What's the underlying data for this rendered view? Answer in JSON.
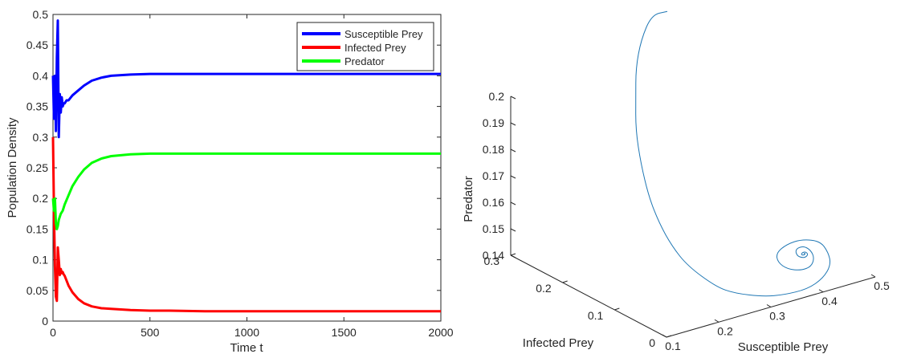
{
  "chart_data": [
    {
      "type": "line",
      "xlabel": "Time t",
      "ylabel": "Population Density",
      "xlim": [
        0,
        2000
      ],
      "ylim": [
        0,
        0.5
      ],
      "xticks": [
        0,
        500,
        1000,
        1500,
        2000
      ],
      "yticks": [
        0,
        0.05,
        0.1,
        0.15,
        0.2,
        0.25,
        0.3,
        0.35,
        0.4,
        0.45,
        0.5
      ],
      "xtick_labels": [
        "0",
        "500",
        "1000",
        "1500",
        "2000"
      ],
      "ytick_labels": [
        "0",
        "0.05",
        "0.1",
        "0.15",
        "0.2",
        "0.25",
        "0.3",
        "0.35",
        "0.4",
        "0.45",
        "0.5"
      ],
      "grid": false,
      "legend_position": "top-right",
      "series": [
        {
          "name": "Susceptible Prey",
          "color": "#0000ff",
          "x": [
            0,
            5,
            10,
            15,
            20,
            25,
            30,
            35,
            40,
            45,
            50,
            55,
            60,
            70,
            80,
            100,
            130,
            160,
            200,
            250,
            300,
            400,
            500,
            600,
            800,
            1000,
            1500,
            2000
          ],
          "y": [
            0.4,
            0.33,
            0.4,
            0.31,
            0.43,
            0.49,
            0.3,
            0.37,
            0.34,
            0.365,
            0.35,
            0.355,
            0.355,
            0.36,
            0.36,
            0.368,
            0.376,
            0.384,
            0.392,
            0.397,
            0.4,
            0.402,
            0.403,
            0.403,
            0.403,
            0.403,
            0.403,
            0.403
          ]
        },
        {
          "name": "Infected Prey",
          "color": "#ff0000",
          "x": [
            0,
            5,
            10,
            15,
            20,
            25,
            30,
            35,
            40,
            45,
            50,
            55,
            60,
            70,
            80,
            100,
            130,
            160,
            200,
            250,
            300,
            400,
            500,
            600,
            800,
            1000,
            1500,
            2000
          ],
          "y": [
            0.3,
            0.18,
            0.09,
            0.04,
            0.033,
            0.12,
            0.1,
            0.075,
            0.085,
            0.078,
            0.08,
            0.076,
            0.074,
            0.066,
            0.058,
            0.047,
            0.036,
            0.029,
            0.024,
            0.021,
            0.02,
            0.018,
            0.017,
            0.017,
            0.016,
            0.016,
            0.016,
            0.016
          ]
        },
        {
          "name": "Predator",
          "color": "#00ff00",
          "x": [
            0,
            5,
            10,
            15,
            20,
            25,
            30,
            40,
            50,
            60,
            80,
            100,
            130,
            160,
            200,
            250,
            300,
            400,
            500,
            600,
            800,
            1000,
            1500,
            2000
          ],
          "y": [
            0.2,
            0.18,
            0.2,
            0.16,
            0.15,
            0.155,
            0.165,
            0.175,
            0.18,
            0.19,
            0.205,
            0.22,
            0.235,
            0.247,
            0.258,
            0.265,
            0.269,
            0.272,
            0.273,
            0.273,
            0.273,
            0.273,
            0.273,
            0.273
          ]
        }
      ]
    },
    {
      "type": "line3d",
      "xlabel": "Susceptible Prey",
      "ylabel": "Infected Prey",
      "zlabel": "Predator",
      "xlim": [
        0.1,
        0.5
      ],
      "ylim": [
        0,
        0.3
      ],
      "zlim": [
        0.14,
        0.2
      ],
      "xtick_labels": [
        "0.1",
        "0.2",
        "0.3",
        "0.4",
        "0.5"
      ],
      "ytick_labels": [
        "0",
        "0.1",
        "0.2",
        "0.3"
      ],
      "ztick_labels": [
        "0.14",
        "0.15",
        "0.16",
        "0.17",
        "0.18",
        "0.19",
        "0.2"
      ],
      "grid": false,
      "series": [
        {
          "color": "#1f77b4",
          "x": [
            0.4,
            0.36,
            0.32,
            0.29,
            0.27,
            0.25,
            0.24,
            0.235,
            0.235,
            0.24,
            0.25,
            0.28,
            0.3,
            0.34,
            0.37,
            0.4,
            0.42,
            0.43,
            0.425,
            0.41,
            0.38,
            0.355,
            0.34,
            0.345,
            0.36,
            0.38,
            0.395,
            0.4,
            0.395,
            0.385,
            0.375,
            0.37,
            0.372,
            0.38,
            0.386,
            0.389,
            0.386,
            0.381,
            0.378,
            0.38,
            0.383,
            0.385,
            0.383,
            0.382
          ],
          "y": [
            0.3,
            0.29,
            0.27,
            0.25,
            0.23,
            0.21,
            0.19,
            0.17,
            0.15,
            0.13,
            0.11,
            0.085,
            0.07,
            0.055,
            0.045,
            0.03,
            0.02,
            0.015,
            0.015,
            0.016,
            0.02,
            0.025,
            0.03,
            0.032,
            0.028,
            0.022,
            0.018,
            0.017,
            0.018,
            0.02,
            0.022,
            0.023,
            0.022,
            0.02,
            0.019,
            0.018,
            0.019,
            0.02,
            0.02,
            0.02,
            0.019,
            0.019,
            0.019,
            0.019
          ],
          "z": [
            0.215,
            0.217,
            0.212,
            0.205,
            0.197,
            0.188,
            0.178,
            0.168,
            0.16,
            0.153,
            0.147,
            0.14,
            0.138,
            0.136,
            0.136,
            0.138,
            0.142,
            0.147,
            0.152,
            0.157,
            0.159,
            0.158,
            0.155,
            0.151,
            0.148,
            0.147,
            0.148,
            0.151,
            0.154,
            0.156,
            0.156,
            0.155,
            0.153,
            0.152,
            0.152,
            0.153,
            0.154,
            0.154,
            0.1535,
            0.153,
            0.153,
            0.1535,
            0.1535,
            0.1535
          ]
        }
      ]
    }
  ]
}
